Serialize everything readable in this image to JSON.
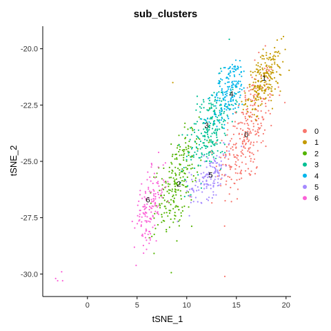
{
  "chart_data": {
    "type": "scatter",
    "title": "sub_clusters",
    "xlabel": "tSNE_1",
    "ylabel": "tSNE_2",
    "xlim": [
      -4.5,
      20.5
    ],
    "ylim": [
      -31,
      -19
    ],
    "x_ticks": [
      0,
      5,
      10,
      15,
      20
    ],
    "y_ticks": [
      -20.0,
      -22.5,
      -25.0,
      -27.5,
      -30.0
    ],
    "x_tick_labels": [
      "0",
      "5",
      "10",
      "15",
      "20"
    ],
    "y_tick_labels": [
      "-20.0",
      "-22.5",
      "-25.0",
      "-27.5",
      "-30.0"
    ],
    "grid": false,
    "legend_position": "right",
    "series": [
      {
        "name": "0",
        "color": "#F8766D",
        "center": [
          16.0,
          -23.8
        ],
        "spread": [
          1.4,
          1.5
        ],
        "n": 280,
        "label_point": [
          16.0,
          -23.8
        ],
        "extra": [
          [
            17.5,
            -22.2
          ],
          [
            14.8,
            -24.8
          ],
          [
            15.5,
            -25.4
          ],
          [
            17.0,
            -23.2
          ],
          [
            14.5,
            -25.8
          ]
        ]
      },
      {
        "name": "1",
        "color": "#C49A00",
        "center": [
          17.8,
          -21.4
        ],
        "spread": [
          0.9,
          0.7
        ],
        "n": 220,
        "label_point": [
          17.8,
          -21.3
        ],
        "extra": [
          [
            8.6,
            -21.5
          ],
          [
            19.3,
            -20.8
          ],
          [
            17.6,
            -20.3
          ],
          [
            18.5,
            -22.3
          ]
        ]
      },
      {
        "name": "2",
        "color": "#53B400",
        "center": [
          9.0,
          -25.9
        ],
        "spread": [
          1.1,
          1.2
        ],
        "n": 230,
        "label_point": [
          9.2,
          -26.0
        ],
        "extra": [
          [
            9.3,
            -27.6
          ],
          [
            10.2,
            -24.6
          ],
          [
            8.0,
            -26.8
          ],
          [
            9.6,
            -27.2
          ]
        ]
      },
      {
        "name": "3",
        "color": "#00C094",
        "center": [
          12.3,
          -23.6
        ],
        "spread": [
          1.2,
          1.1
        ],
        "n": 240,
        "label_point": [
          12.0,
          -23.4
        ],
        "extra": [
          [
            11.0,
            -24.4
          ],
          [
            13.0,
            -22.4
          ],
          [
            12.8,
            -22.8
          ]
        ]
      },
      {
        "name": "4",
        "color": "#00B6EB",
        "center": [
          14.3,
          -21.9
        ],
        "spread": [
          0.9,
          0.8
        ],
        "n": 170,
        "label_point": [
          14.5,
          -22.0
        ],
        "extra": [
          [
            13.5,
            -21.0
          ],
          [
            15.2,
            -22.6
          ]
        ]
      },
      {
        "name": "5",
        "color": "#A58AFF",
        "center": [
          12.3,
          -25.6
        ],
        "spread": [
          1.0,
          0.6
        ],
        "n": 130,
        "label_point": [
          12.4,
          -25.6
        ],
        "extra": [
          [
            13.4,
            -26.0
          ],
          [
            11.0,
            -26.3
          ]
        ]
      },
      {
        "name": "6",
        "color": "#FB61D7",
        "center": [
          6.3,
          -27.0
        ],
        "spread": [
          0.8,
          0.9
        ],
        "n": 140,
        "label_point": [
          6.1,
          -26.7
        ],
        "extra": [
          [
            -3.2,
            -30.2
          ],
          [
            -3.0,
            -30.3
          ],
          [
            -2.6,
            -29.9
          ],
          [
            -2.5,
            -30.3
          ],
          [
            7.2,
            -26.1
          ],
          [
            5.8,
            -28.2
          ]
        ]
      }
    ]
  }
}
